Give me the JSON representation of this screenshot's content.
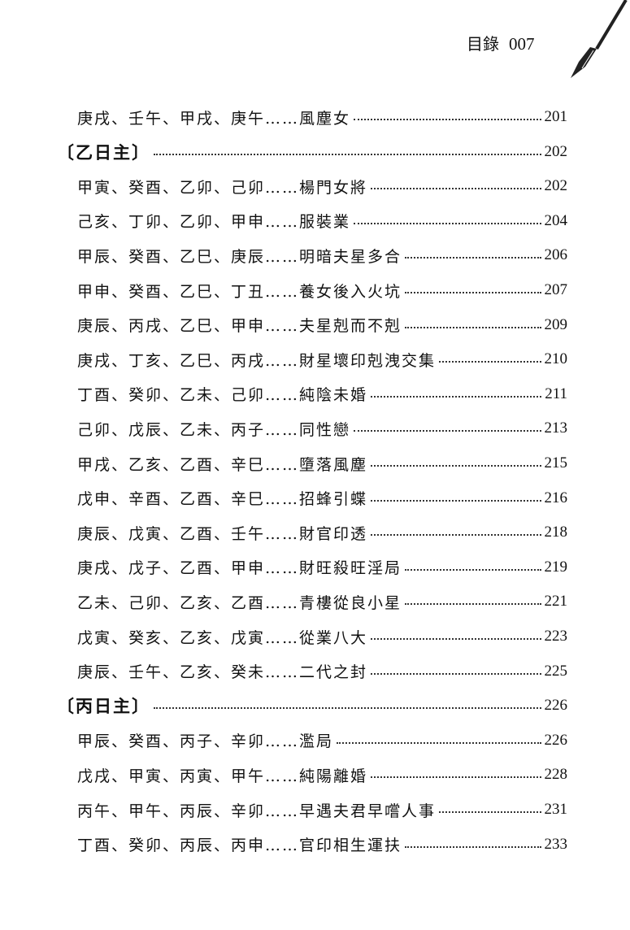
{
  "header": {
    "title": "目錄",
    "page_number": "007"
  },
  "toc": [
    {
      "type": "entry",
      "text": "庚戌、壬午、甲戌、庚午……風塵女",
      "page": "201"
    },
    {
      "type": "section",
      "text": "〔乙日主〕",
      "page": "202"
    },
    {
      "type": "entry",
      "text": "甲寅、癸酉、乙卯、己卯……楊門女將",
      "page": "202"
    },
    {
      "type": "entry",
      "text": "己亥、丁卯、乙卯、甲申……服裝業",
      "page": "204"
    },
    {
      "type": "entry",
      "text": "甲辰、癸酉、乙巳、庚辰……明暗夫星多合",
      "page": "206"
    },
    {
      "type": "entry",
      "text": "甲申、癸酉、乙巳、丁丑……養女後入火坑",
      "page": "207"
    },
    {
      "type": "entry",
      "text": "庚辰、丙戌、乙巳、甲申……夫星剋而不剋",
      "page": "209"
    },
    {
      "type": "entry",
      "text": "庚戌、丁亥、乙巳、丙戌……財星壞印剋洩交集",
      "page": "210"
    },
    {
      "type": "entry",
      "text": "丁酉、癸卯、乙未、己卯……純陰未婚",
      "page": "211"
    },
    {
      "type": "entry",
      "text": "己卯、戊辰、乙未、丙子……同性戀",
      "page": "213"
    },
    {
      "type": "entry",
      "text": "甲戌、乙亥、乙酉、辛巳……墮落風塵",
      "page": "215"
    },
    {
      "type": "entry",
      "text": "戊申、辛酉、乙酉、辛巳……招蜂引蝶",
      "page": "216"
    },
    {
      "type": "entry",
      "text": "庚辰、戊寅、乙酉、壬午……財官印透",
      "page": "218"
    },
    {
      "type": "entry",
      "text": "庚戌、戊子、乙酉、甲申……財旺殺旺淫局",
      "page": "219"
    },
    {
      "type": "entry",
      "text": "乙未、己卯、乙亥、乙酉……青樓從良小星",
      "page": "221"
    },
    {
      "type": "entry",
      "text": "戊寅、癸亥、乙亥、戊寅……從業八大",
      "page": "223"
    },
    {
      "type": "entry",
      "text": "庚辰、壬午、乙亥、癸未……二代之封",
      "page": "225"
    },
    {
      "type": "section",
      "text": "〔丙日主〕",
      "page": "226"
    },
    {
      "type": "entry",
      "text": "甲辰、癸酉、丙子、辛卯……濫局",
      "page": "226"
    },
    {
      "type": "entry",
      "text": "戊戌、甲寅、丙寅、甲午……純陽離婚",
      "page": "228"
    },
    {
      "type": "entry",
      "text": "丙午、甲午、丙辰、辛卯……早遇夫君早嚐人事",
      "page": "231"
    },
    {
      "type": "entry",
      "text": "丁酉、癸卯、丙辰、丙申……官印相生運扶",
      "page": "233"
    }
  ]
}
